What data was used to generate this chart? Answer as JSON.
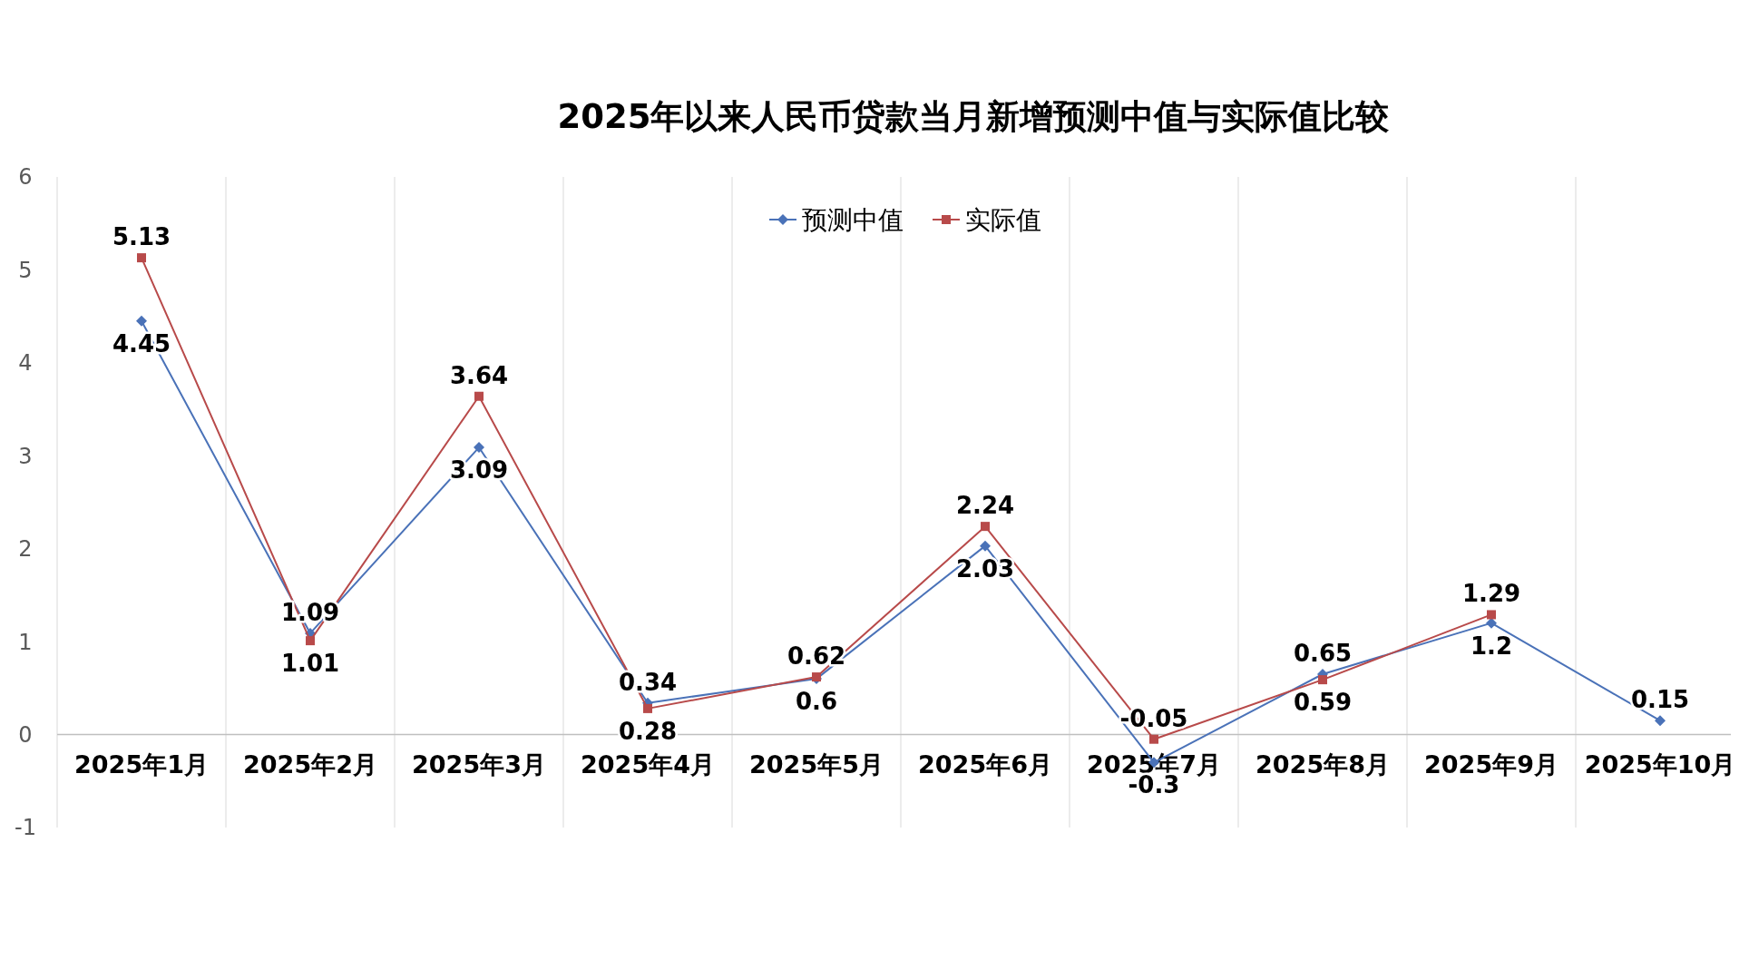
{
  "chart_data": {
    "type": "line",
    "title": "2025年以来人民币贷款当月新增预测中值与实际值比较",
    "categories": [
      "2025年1月",
      "2025年2月",
      "2025年3月",
      "2025年4月",
      "2025年5月",
      "2025年6月",
      "2025年7月",
      "2025年8月",
      "2025年9月",
      "2025年10月"
    ],
    "series": [
      {
        "name": "预测中值",
        "color": "#4a72b8",
        "marker": "diamond",
        "values": [
          4.45,
          1.09,
          3.09,
          0.34,
          0.6,
          2.03,
          -0.3,
          0.65,
          1.2,
          0.15
        ]
      },
      {
        "name": "实际值",
        "color": "#b84a4a",
        "marker": "square",
        "values": [
          5.13,
          1.01,
          3.64,
          0.28,
          0.62,
          2.24,
          -0.05,
          0.59,
          1.29,
          null
        ]
      }
    ],
    "ylim": [
      -1,
      6
    ],
    "yticks": [
      -1,
      0,
      1,
      2,
      3,
      4,
      5,
      6
    ],
    "grid": "x",
    "legend": "top",
    "data_labels": true
  }
}
